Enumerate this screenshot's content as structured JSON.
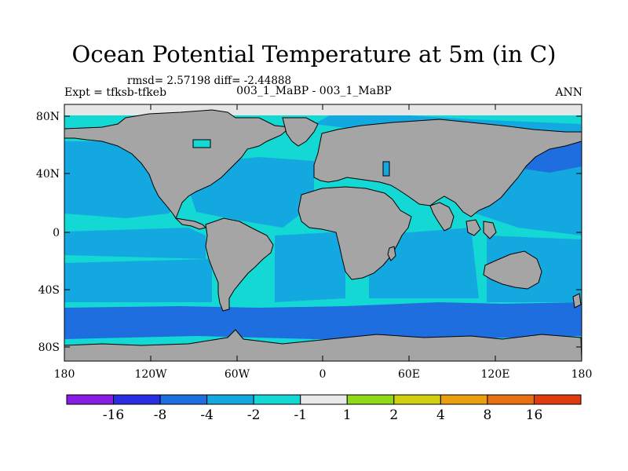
{
  "title": "Ocean Potential Temperature at 5m (in C)",
  "stats": "rmsd= 2.57198 diff= -2.44888",
  "expt": "Expt = tfksb-tfkeb",
  "subtitle": "003_1_MaBP - 003_1_MaBP",
  "season": "ANN",
  "lat_labels": [
    "80N",
    "40N",
    "0",
    "40S",
    "80S"
  ],
  "lon_labels": [
    "180",
    "120W",
    "60W",
    "0",
    "60E",
    "120E",
    "180"
  ],
  "colorbar": {
    "colors": [
      "#8a1de4",
      "#2a2ee0",
      "#1e6ee0",
      "#14a8e0",
      "#14d8d4",
      "#e8e8e8",
      "#90d818",
      "#d0d010",
      "#e8a010",
      "#e87010",
      "#e03a10"
    ],
    "labels": [
      "-16",
      "-8",
      "-4",
      "-2",
      "-1",
      "1",
      "2",
      "4",
      "8",
      "16"
    ]
  },
  "map_colors": {
    "land": "#a5a5a5",
    "ice": "#e6e6e6",
    "bin_minus8_minus4": "#1e6ee0",
    "bin_minus4_minus2": "#14a8e0",
    "bin_minus2_minus1": "#14d8d4",
    "bin_minus1_1": "#e8e8e8"
  }
}
